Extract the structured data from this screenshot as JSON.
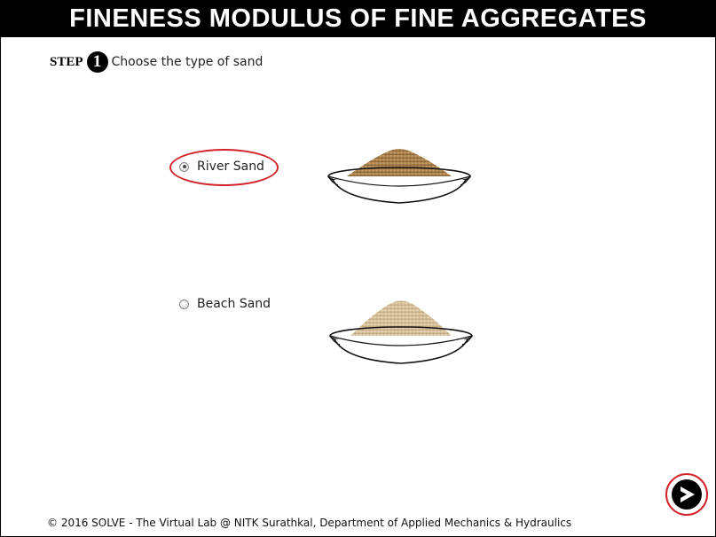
{
  "header": {
    "title": "FINENESS MODULUS OF FINE AGGREGATES"
  },
  "step": {
    "label": "STEP",
    "number": "1",
    "instruction": "Choose the type of sand"
  },
  "options": [
    {
      "label": "River Sand",
      "selected": true,
      "sand_color": "#b88f5c",
      "icon": "river-sand-bowl"
    },
    {
      "label": "Beach Sand",
      "selected": false,
      "sand_color": "#dbc6a4",
      "icon": "beach-sand-bowl"
    }
  ],
  "footer": {
    "text": "© 2016 SOLVE - The Virtual Lab @ NITK Surathkal, Department of Applied Mechanics & Hydraulics"
  },
  "navigation": {
    "next_icon": "arrow-right-icon"
  },
  "colors": {
    "highlight": "#d2232a",
    "title_bg": "#000000",
    "title_text": "#ffffff"
  }
}
